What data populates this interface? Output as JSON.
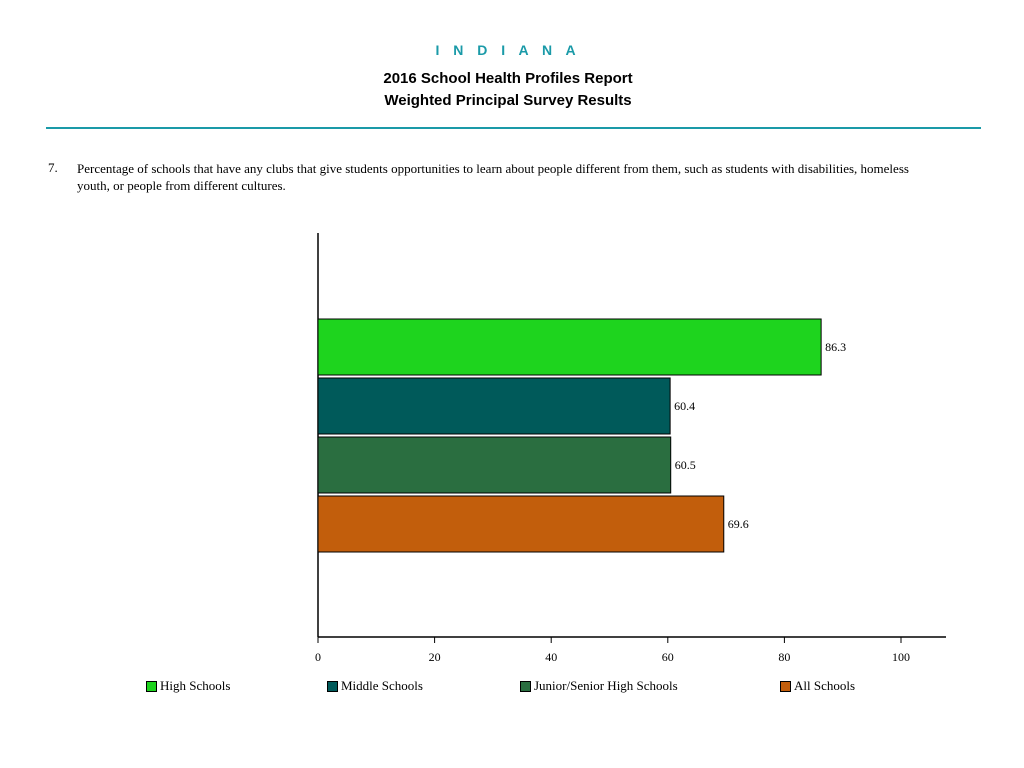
{
  "header": {
    "state": "I N D I A N A",
    "title": "2016 School Health Profiles Report",
    "subtitle": "Weighted Principal Survey Results"
  },
  "question": {
    "number": "7.",
    "text": "Percentage of schools that have any clubs that give students opportunities to learn about people different from them, such as students with disabilities, homeless youth, or people from different cultures."
  },
  "chart_data": {
    "type": "bar",
    "orientation": "horizontal",
    "categories": [
      "High Schools",
      "Middle Schools",
      "Junior/Senior High Schools",
      "All Schools"
    ],
    "values": [
      86.3,
      60.4,
      60.5,
      69.6
    ],
    "value_labels": [
      "86.3",
      "60.4",
      "60.5",
      "69.6"
    ],
    "colors": [
      "#1ed41e",
      "#005a5a",
      "#2a6e40",
      "#c25e0c"
    ],
    "xlim": [
      0,
      100
    ],
    "xticks": [
      0,
      20,
      40,
      60,
      80,
      100
    ],
    "grid": false,
    "legend_position": "bottom"
  },
  "legend": [
    {
      "label": "High Schools",
      "color": "#1ed41e"
    },
    {
      "label": "Middle Schools",
      "color": "#005a5a"
    },
    {
      "label": "Junior/Senior High Schools",
      "color": "#2a6e40"
    },
    {
      "label": "All Schools",
      "color": "#c25e0c"
    }
  ]
}
